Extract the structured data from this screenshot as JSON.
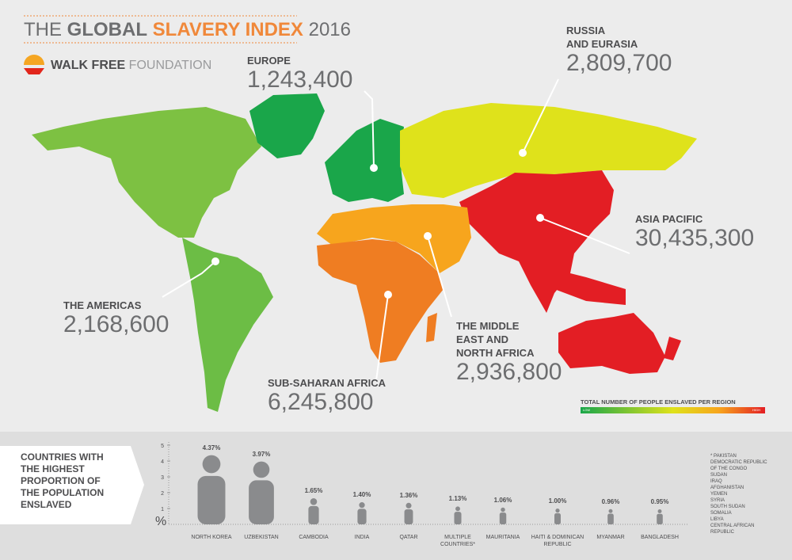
{
  "header": {
    "title_parts": [
      "THE",
      "GLOBAL",
      "SLAVERY INDEX",
      "2016"
    ],
    "logo_parts": [
      "WALK FREE",
      "FOUNDATION"
    ]
  },
  "map": {
    "regions": [
      {
        "name": [
          "EUROPE"
        ],
        "value": "1,243,400"
      },
      {
        "name": [
          "RUSSIA",
          "AND EURASIA"
        ],
        "value": "2,809,700"
      },
      {
        "name": [
          "ASIA PACIFIC"
        ],
        "value": "30,435,300"
      },
      {
        "name": [
          "THE AMERICAS"
        ],
        "value": "2,168,600"
      },
      {
        "name": [
          "SUB-SAHARAN AFRICA"
        ],
        "value": "6,245,800"
      },
      {
        "name": [
          "THE MIDDLE",
          "EAST AND",
          "NORTH AFRICA"
        ],
        "value": "2,936,800"
      }
    ],
    "legend": {
      "title": "TOTAL NUMBER OF PEOPLE ENSLAVED PER REGION",
      "low": "LOW",
      "high": "HIGH"
    }
  },
  "chart_data": {
    "type": "pictogram",
    "title": "COUNTRIES WITH THE HIGHEST PROPORTION OF THE POPULATION ENSLAVED",
    "y_label": "%",
    "categories": [
      "NORTH KOREA",
      "UZBEKISTAN",
      "CAMBODIA",
      "INDIA",
      "QATAR",
      "MULTIPLE COUNTRIES*",
      "MAURITANIA",
      "HAITI & DOMINICAN REPUBLIC",
      "MYANMAR",
      "BANGLADESH"
    ],
    "values": [
      4.37,
      3.97,
      1.65,
      1.4,
      1.36,
      1.13,
      1.06,
      1.0,
      0.96,
      0.95
    ],
    "value_labels": [
      "4.37%",
      "3.97%",
      "1.65%",
      "1.40%",
      "1.36%",
      "1.13%",
      "1.06%",
      "1.00%",
      "0.96%",
      "0.95%"
    ],
    "color": "#8a8b8d",
    "ylim": [
      0,
      5
    ],
    "yticks": [
      1,
      2,
      3,
      4,
      5
    ]
  },
  "footnote": {
    "marker": "*",
    "countries": [
      "PAKISTAN",
      "DEMOCRATIC REPUBLIC OF THE CONGO",
      "SUDAN",
      "IRAQ",
      "AFGHANISTAN",
      "YEMEN",
      "SYRIA",
      "SOUTH SUDAN",
      "SOMALIA",
      "LIBYA",
      "CENTRAL AFRICAN REPUBLIC"
    ]
  }
}
